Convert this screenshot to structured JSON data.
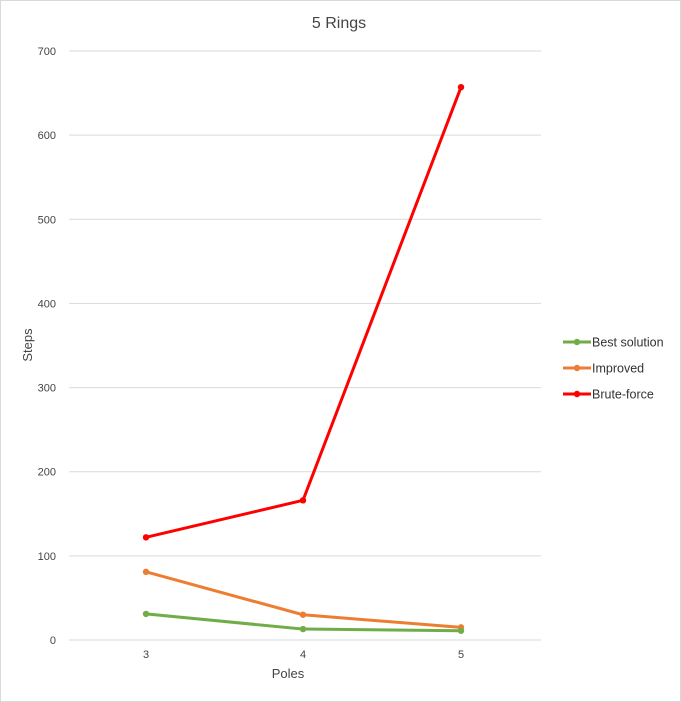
{
  "chart_data": {
    "type": "line",
    "title": "5 Rings",
    "xlabel": "Poles",
    "ylabel": "Steps",
    "categories": [
      "3",
      "4",
      "5"
    ],
    "ylim": [
      0,
      700
    ],
    "yticks": [
      0,
      100,
      200,
      300,
      400,
      500,
      600,
      700
    ],
    "grid": true,
    "legend": "right",
    "series": [
      {
        "name": "Best solution",
        "color": "#70ad47",
        "values": [
          31,
          13,
          11
        ]
      },
      {
        "name": "Improved",
        "color": "#ed7d31",
        "values": [
          81,
          30,
          15
        ]
      },
      {
        "name": "Brute-force",
        "color": "#ff0000",
        "values": [
          122,
          166,
          657
        ]
      }
    ]
  }
}
